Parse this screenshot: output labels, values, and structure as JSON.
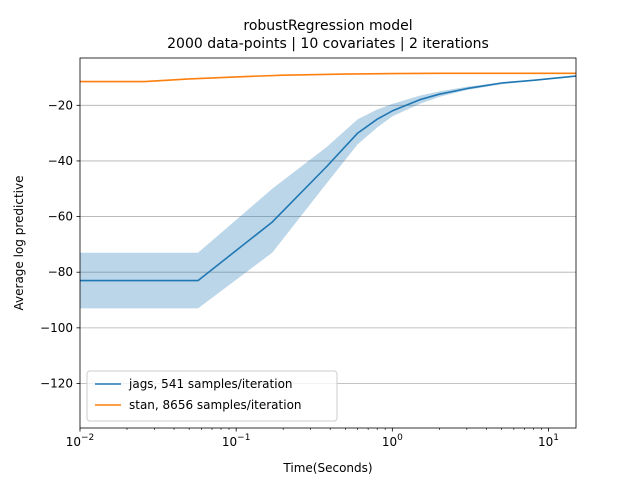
{
  "chart_data": {
    "type": "line",
    "title": "robustRegression model",
    "subtitle": "2000 data-points | 10 covariates | 2 iterations",
    "xlabel": "Time(Seconds)",
    "ylabel": "Average log predictive",
    "xscale": "log",
    "xlim": [
      0.01,
      15
    ],
    "ylim": [
      -136,
      -3
    ],
    "xticks": [
      {
        "value": 0.01,
        "base": "10",
        "exp": "−2"
      },
      {
        "value": 0.1,
        "base": "10",
        "exp": "−1"
      },
      {
        "value": 1,
        "base": "10",
        "exp": "0"
      },
      {
        "value": 10,
        "base": "10",
        "exp": "1"
      }
    ],
    "yticks": [
      -120,
      -100,
      -80,
      -60,
      -40,
      -20
    ],
    "ytick_labels": [
      "−120",
      "−100",
      "−80",
      "−60",
      "−40",
      "−20"
    ],
    "grid": "y-major",
    "legend_position": "lower-left",
    "series": [
      {
        "name": "jags, 541 samples/iteration",
        "color": "#1f77b4",
        "x": [
          0.01,
          0.057,
          0.17,
          0.38,
          0.6,
          0.8,
          1.0,
          1.5,
          2.0,
          3.0,
          5.0,
          8.0,
          15.0
        ],
        "y": [
          -83,
          -83,
          -62,
          -42,
          -30,
          -25,
          -22,
          -18,
          -16,
          -14,
          -12,
          -11,
          -9.5
        ],
        "band_lower": [
          -93,
          -93,
          -73,
          -48,
          -34,
          -28,
          -24,
          -19.5,
          -17,
          -14.5,
          -12.5,
          -11.2,
          -9.6
        ],
        "band_upper": [
          -73,
          -73,
          -50,
          -35,
          -25,
          -21.5,
          -19.5,
          -16.5,
          -15,
          -13.3,
          -11.8,
          -10.8,
          -9.4
        ]
      },
      {
        "name": "stan, 8656 samples/iteration",
        "color": "#ff7f0e",
        "x": [
          0.01,
          0.026,
          0.05,
          0.1,
          0.2,
          0.5,
          1.0,
          2.0,
          5.0,
          15.0
        ],
        "y": [
          -11.5,
          -11.5,
          -10.5,
          -9.8,
          -9.2,
          -8.8,
          -8.6,
          -8.5,
          -8.5,
          -8.5
        ]
      }
    ]
  }
}
